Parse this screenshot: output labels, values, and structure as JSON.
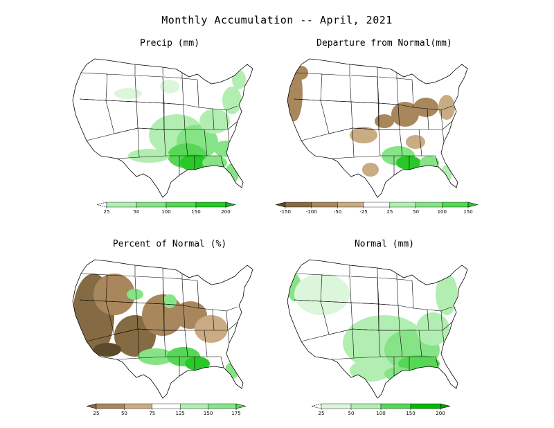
{
  "title": "Monthly Accumulation -- April, 2021",
  "colors": {
    "outline": "#000000",
    "green_1": "#dcf6dc",
    "green_2": "#b2eeb2",
    "green_3": "#86e486",
    "green_4": "#56d856",
    "green_5": "#28c828",
    "green_6": "#06b806",
    "brown_1": "#5c4a2a",
    "brown_2": "#856b43",
    "brown_3": "#a8875d",
    "brown_4": "#c9ab84"
  },
  "panels": [
    {
      "id": "precip",
      "title": "Precip (mm)",
      "legend": {
        "ticks": [
          "25",
          "50",
          "100",
          "150",
          "200"
        ],
        "colors": [
          "#dcf6dc",
          "#b2eeb2",
          "#86e486",
          "#56d856",
          "#28c828",
          "#1cb31c"
        ],
        "lower_arrow": "dashed"
      }
    },
    {
      "id": "departure",
      "title": "Departure from Normal(mm)",
      "legend": {
        "ticks": [
          "-150",
          "-100",
          "-50",
          "-25",
          "25",
          "50",
          "100",
          "150"
        ],
        "colors": [
          "#5c4a2a",
          "#856b43",
          "#a8875d",
          "#c9ab84",
          "#ffffff",
          "#b2eeb2",
          "#86e486",
          "#56d856",
          "#28c828"
        ],
        "lower_arrow": "solid"
      }
    },
    {
      "id": "percent",
      "title": "Percent of Normal (%)",
      "legend": {
        "ticks": [
          "25",
          "50",
          "75",
          "125",
          "150",
          "175"
        ],
        "colors": [
          "#856b43",
          "#a8875d",
          "#c9ab84",
          "#ffffff",
          "#b2eeb2",
          "#86e486",
          "#56d856"
        ],
        "lower_arrow": "solid"
      }
    },
    {
      "id": "normal",
      "title": "Normal (mm)",
      "legend": {
        "ticks": [
          "25",
          "50",
          "100",
          "150",
          "200"
        ],
        "colors": [
          "#ffffff",
          "#dcf6dc",
          "#b2eeb2",
          "#56d856",
          "#06b806",
          "#039a03"
        ],
        "lower_arrow": "dashed"
      }
    }
  ]
}
